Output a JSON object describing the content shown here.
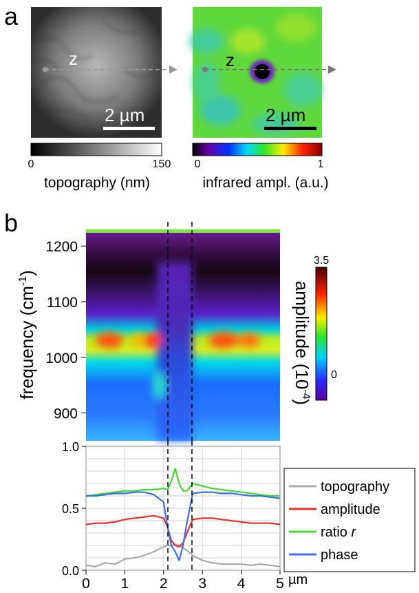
{
  "panels": {
    "a": "a",
    "b": "b"
  },
  "images": {
    "topography": {
      "scan_label": "z",
      "scalebar": "2 µm",
      "colorbar_min": "0",
      "colorbar_max": "150",
      "colorbar_label": "topography (nm)"
    },
    "infrared": {
      "scan_label": "z",
      "scalebar": "2 µm",
      "colorbar_min": "0",
      "colorbar_max": "1",
      "colorbar_label": "infrared ampl. (a.u.)"
    }
  },
  "colors": {
    "topography": "#a8a8a8",
    "amplitude": "#e8302a",
    "ratio": "#3fdc2a",
    "phase": "#3a6df0",
    "scan_arrow": "#888888",
    "ir_background": "#5fd83c"
  },
  "chart_data": [
    {
      "type": "heatmap",
      "ylabel": "frequency (cm",
      "ylabel_sup": "-1",
      "ylabel_close": ")",
      "yticks": [
        900,
        1000,
        1100,
        1200
      ],
      "ylim": [
        850,
        1230
      ],
      "xlim": [
        0,
        5
      ],
      "colorbar": {
        "label": "amplitude (10",
        "label_sup": "-4",
        "label_close": ")",
        "min": "0",
        "max": "3.5"
      },
      "markers_x": [
        2.0,
        2.65
      ]
    },
    {
      "type": "line",
      "xlabel_unit": "µm",
      "xticks": [
        "0",
        "1",
        "2",
        "3",
        "4",
        "5"
      ],
      "yticks": [
        "0.0",
        "0.5",
        "1.0"
      ],
      "xlim": [
        0,
        5
      ],
      "ylim": [
        0,
        1
      ],
      "grid": true,
      "legend_position": "right",
      "x": [
        0,
        0.25,
        0.5,
        0.75,
        1.0,
        1.25,
        1.5,
        1.75,
        2.0,
        2.1,
        2.2,
        2.3,
        2.4,
        2.5,
        2.6,
        2.75,
        3.0,
        3.25,
        3.5,
        3.75,
        4.0,
        4.25,
        4.5,
        4.75,
        5.0
      ],
      "series": [
        {
          "name": "topography",
          "values": [
            0.04,
            0.03,
            0.06,
            0.05,
            0.09,
            0.1,
            0.12,
            0.15,
            0.19,
            0.2,
            0.2,
            0.21,
            0.2,
            0.18,
            0.16,
            0.12,
            0.08,
            0.06,
            0.05,
            0.05,
            0.05,
            0.04,
            0.05,
            0.04,
            0.03
          ]
        },
        {
          "name": "amplitude",
          "values": [
            0.37,
            0.38,
            0.38,
            0.39,
            0.41,
            0.42,
            0.43,
            0.44,
            0.42,
            0.35,
            0.24,
            0.2,
            0.19,
            0.22,
            0.3,
            0.41,
            0.42,
            0.42,
            0.41,
            0.4,
            0.39,
            0.38,
            0.38,
            0.38,
            0.37
          ]
        },
        {
          "name": "ratio r",
          "values": [
            0.6,
            0.61,
            0.62,
            0.63,
            0.64,
            0.64,
            0.65,
            0.65,
            0.66,
            0.65,
            0.72,
            0.82,
            0.7,
            0.64,
            0.64,
            0.7,
            0.68,
            0.66,
            0.65,
            0.64,
            0.63,
            0.62,
            0.61,
            0.6,
            0.6
          ]
        },
        {
          "name": "phase",
          "values": [
            0.6,
            0.6,
            0.61,
            0.62,
            0.62,
            0.63,
            0.63,
            0.61,
            0.55,
            0.35,
            0.2,
            0.15,
            0.08,
            0.2,
            0.38,
            0.62,
            0.63,
            0.63,
            0.62,
            0.62,
            0.61,
            0.6,
            0.6,
            0.59,
            0.58
          ]
        }
      ]
    }
  ]
}
